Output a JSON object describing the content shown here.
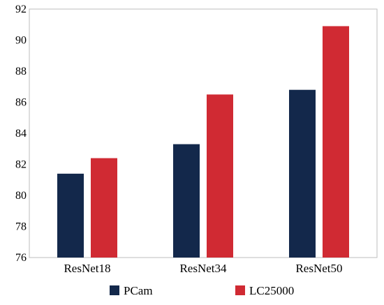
{
  "chart_data": {
    "type": "bar",
    "title": "",
    "xlabel": "",
    "ylabel": "",
    "categories": [
      "ResNet18",
      "ResNet34",
      "ResNet50"
    ],
    "series": [
      {
        "name": "PCam",
        "values": [
          81.4,
          83.3,
          86.8
        ],
        "color": "#13284b"
      },
      {
        "name": "LC25000",
        "values": [
          82.4,
          86.5,
          90.9
        ],
        "color": "#d02a33"
      }
    ],
    "ylim": [
      76,
      92
    ],
    "yticks": [
      76,
      78,
      80,
      82,
      84,
      86,
      88,
      90,
      92
    ],
    "grid": false,
    "legend_position": "bottom"
  }
}
